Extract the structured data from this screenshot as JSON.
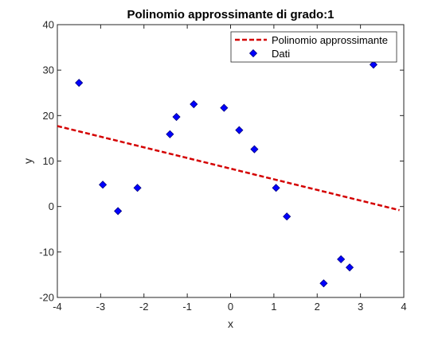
{
  "chart_data": {
    "type": "scatter",
    "title": "Polinomio approssimante di grado:1",
    "xlabel": "x",
    "ylabel": "y",
    "xlim": [
      -4,
      4
    ],
    "ylim": [
      -20,
      40
    ],
    "xticks": [
      -4,
      -3,
      -2,
      -1,
      0,
      1,
      2,
      3,
      4
    ],
    "yticks": [
      -20,
      -10,
      0,
      10,
      20,
      30,
      40
    ],
    "xtick_labels": [
      "-4",
      "-3",
      "-2",
      "-1",
      "0",
      "1",
      "2",
      "3",
      "4"
    ],
    "ytick_labels": [
      "-20",
      "-10",
      "0",
      "10",
      "20",
      "30",
      "40"
    ],
    "grid": false,
    "legend_position": "top-right",
    "series": [
      {
        "name": "Polinomio approssimante",
        "kind": "line",
        "style": "dashed",
        "color": "#d40000",
        "x": [
          -4,
          3.9
        ],
        "y": [
          17.7,
          -0.8
        ]
      },
      {
        "name": "Dati",
        "kind": "scatter",
        "marker": "diamond",
        "color": "#0000ff",
        "x": [
          -3.5,
          -2.95,
          -2.6,
          -2.15,
          -1.4,
          -1.25,
          -0.85,
          -0.15,
          0.2,
          0.55,
          1.05,
          1.3,
          2.15,
          2.55,
          2.75,
          3.3
        ],
        "y": [
          27.2,
          4.8,
          -1.0,
          4.1,
          15.9,
          19.7,
          22.5,
          21.7,
          16.8,
          12.6,
          4.1,
          -2.2,
          -16.9,
          -11.6,
          -13.4,
          31.2
        ]
      }
    ]
  }
}
